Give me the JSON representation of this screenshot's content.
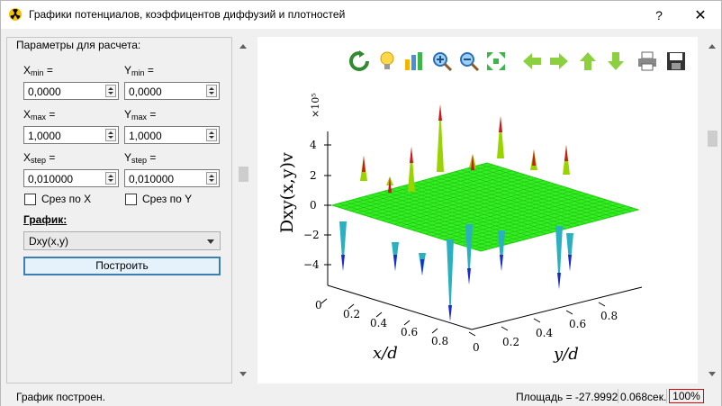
{
  "window": {
    "title": "Графики потенциалов, коэффицентов диффузий и плотностей",
    "help_label": "?",
    "close_label": "✕"
  },
  "params": {
    "legend": "Параметры для расчета:",
    "x_min": {
      "label_main": "X",
      "label_sub": "min",
      "suffix": " =",
      "value": "0,0000"
    },
    "y_min": {
      "label_main": "Y",
      "label_sub": "min",
      "suffix": " =",
      "value": "0,0000"
    },
    "x_max": {
      "label_main": "X",
      "label_sub": "max",
      "suffix": " =",
      "value": "1,0000"
    },
    "y_max": {
      "label_main": "Y",
      "label_sub": "max",
      "suffix": " =",
      "value": "1,0000"
    },
    "x_step": {
      "label_main": "X",
      "label_sub": "step",
      "suffix": " =",
      "value": "0,010000"
    },
    "y_step": {
      "label_main": "Y",
      "label_sub": "step",
      "suffix": " =",
      "value": "0,010000"
    },
    "slice_x_label": "Срез по X",
    "slice_y_label": "Срез по Y",
    "slice_x_checked": false,
    "slice_y_checked": false,
    "graph_label": "График:",
    "graph_selected": "Dxy(x,y)",
    "build_label": "Построить"
  },
  "toolbar": {
    "icons": [
      "refresh-icon",
      "bulb-icon",
      "bar-chart-icon",
      "zoom-in-icon",
      "zoom-out-icon",
      "fit-icon",
      "arrow-left-icon",
      "arrow-right-icon",
      "arrow-up-icon",
      "arrow-down-icon",
      "print-icon",
      "save-icon"
    ]
  },
  "plot": {
    "z_label": "Dxy(x,y)v",
    "z_exponent": "×10⁵",
    "z_ticks": [
      "4",
      "2",
      "0",
      "−2",
      "−4"
    ],
    "x_label": "x/d",
    "x_ticks": [
      "0",
      "0.2",
      "0.4",
      "0.6",
      "0.8"
    ],
    "y_label": "y/d",
    "y_ticks": [
      "0",
      "0.2",
      "0.4",
      "0.6",
      "0.8"
    ],
    "surface_color": "#33ee22"
  },
  "status": {
    "message": "График построен.",
    "area": "Площадь = -27.9992",
    "time": "0.068сек.",
    "zoom": "100%"
  }
}
